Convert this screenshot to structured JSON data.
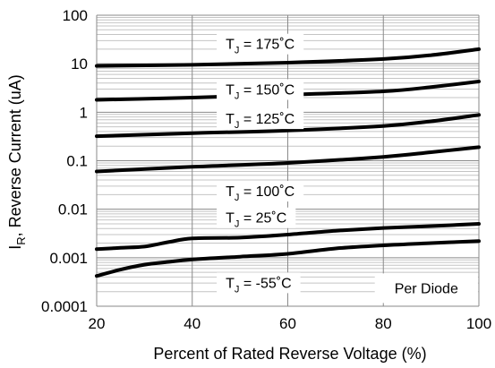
{
  "chart_data": {
    "type": "line",
    "xlabel": "Percent of Rated Reverse Voltage (%)",
    "ylabel_main": "I",
    "ylabel_sub": "R",
    "ylabel_rest": ", Reverse Current (uA)",
    "xlim": [
      20,
      100
    ],
    "ylim": [
      0.0001,
      100
    ],
    "y_scale": "log",
    "x_ticks": [
      20,
      40,
      60,
      80,
      100
    ],
    "x_tick_labels": [
      "20",
      "40",
      "60",
      "80",
      "100"
    ],
    "y_ticks": [
      0.0001,
      0.001,
      0.01,
      0.1,
      1,
      10,
      100
    ],
    "y_tick_labels": [
      "0.0001",
      "0.001",
      "0.01",
      "0.1",
      "1",
      "10",
      "100"
    ],
    "grid": "log minor horizontal + major vertical",
    "annotation": "Per Diode",
    "series": [
      {
        "name": "T",
        "sub": "J",
        "tail": " = 175˚C",
        "label_x": 47,
        "label_y": 26,
        "x": [
          20,
          40,
          60,
          80,
          90,
          100
        ],
        "y": [
          9,
          9.5,
          10.5,
          12.5,
          15,
          20
        ]
      },
      {
        "name": "T",
        "sub": "J",
        "tail": " = 150˚C",
        "label_x": 47,
        "label_y": 3.0,
        "x": [
          20,
          40,
          60,
          80,
          90,
          100
        ],
        "y": [
          1.8,
          2.0,
          2.3,
          2.7,
          3.3,
          4.3
        ]
      },
      {
        "name": "T",
        "sub": "J",
        "tail": " = 125˚C",
        "label_x": 47,
        "label_y": 0.75,
        "x": [
          20,
          40,
          60,
          80,
          90,
          100
        ],
        "y": [
          0.32,
          0.37,
          0.42,
          0.52,
          0.65,
          0.88
        ]
      },
      {
        "name": "T",
        "sub": "J",
        "tail": " = 100˚C",
        "label_x": 47,
        "label_y": 0.024,
        "x": [
          20,
          40,
          60,
          80,
          90,
          100
        ],
        "y": [
          0.06,
          0.075,
          0.09,
          0.12,
          0.15,
          0.19
        ]
      },
      {
        "name": "T",
        "sub": "J",
        "tail": " = 25˚C",
        "label_x": 47,
        "label_y": 0.0068,
        "x": [
          20,
          25,
          30,
          35,
          40,
          50,
          60,
          70,
          80,
          90,
          100
        ],
        "y": [
          0.0015,
          0.0016,
          0.0017,
          0.0021,
          0.0025,
          0.0026,
          0.003,
          0.0036,
          0.0041,
          0.0045,
          0.005
        ]
      },
      {
        "name": "T",
        "sub": "J",
        "tail": " = -55˚C",
        "label_x": 47,
        "label_y": 0.00031,
        "x": [
          20,
          25,
          30,
          35,
          40,
          50,
          60,
          70,
          80,
          90,
          100
        ],
        "y": [
          0.00042,
          0.00057,
          0.00072,
          0.00082,
          0.00092,
          0.00105,
          0.0012,
          0.00155,
          0.0018,
          0.002,
          0.0022
        ]
      }
    ]
  }
}
